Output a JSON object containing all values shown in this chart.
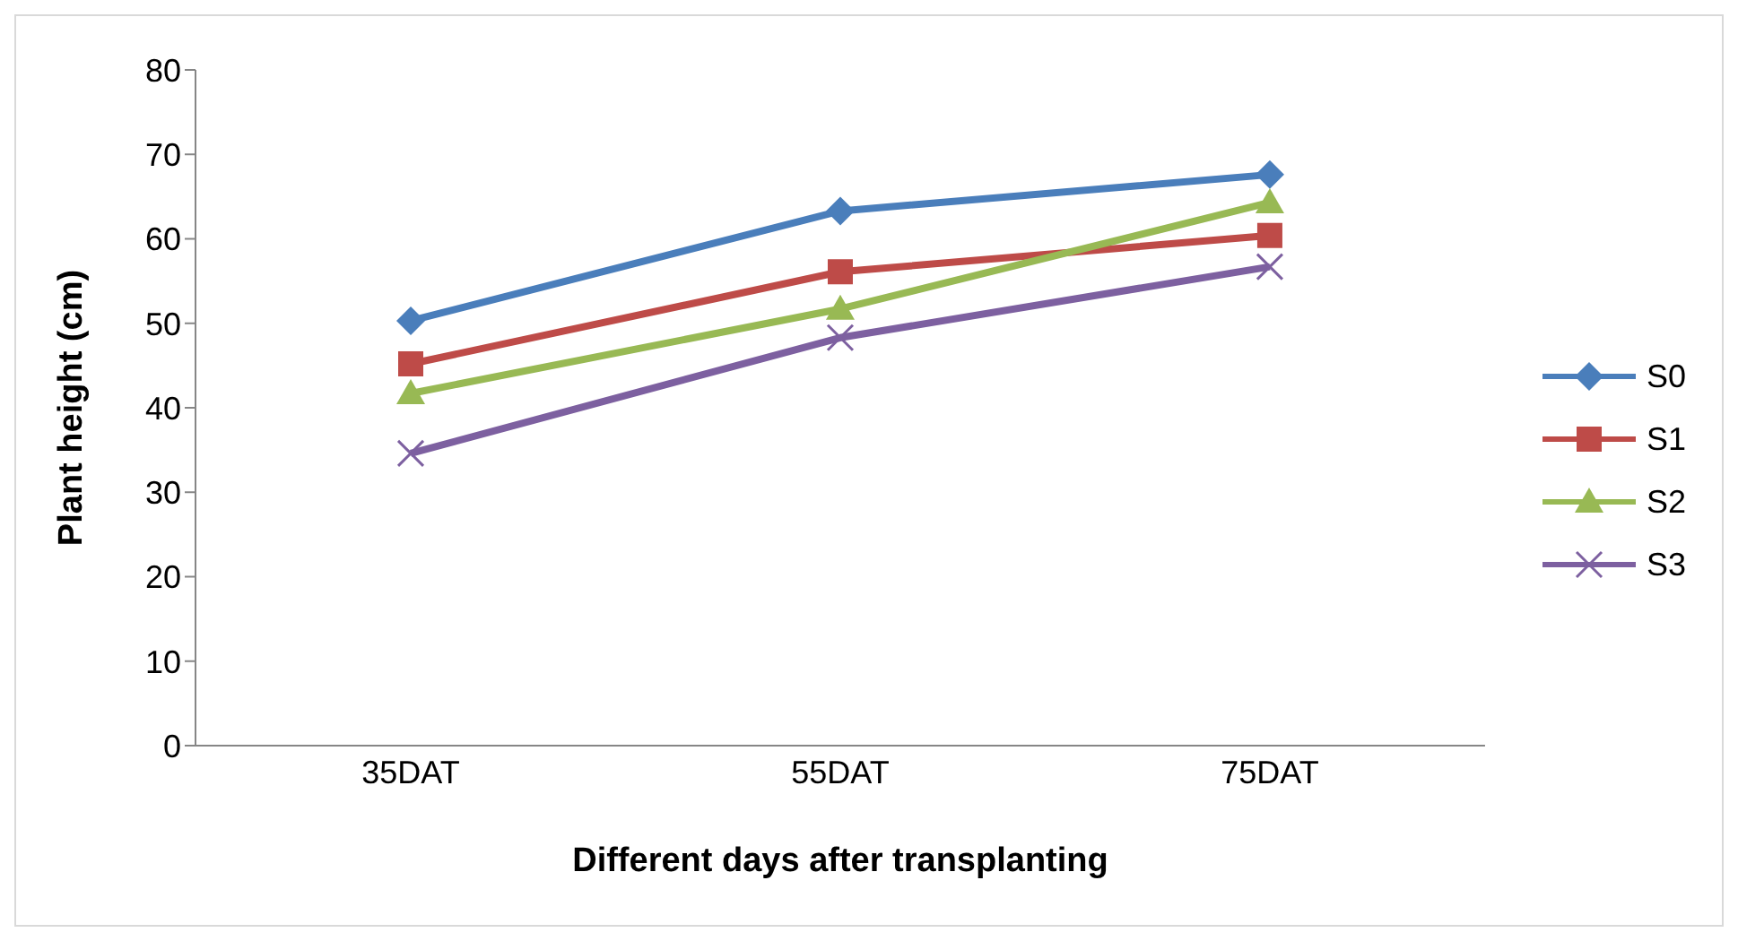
{
  "chart_data": {
    "type": "line",
    "xlabel": "Different days after transplanting",
    "ylabel": "Plant height (cm)",
    "categories": [
      "35DAT",
      "55DAT",
      "75DAT"
    ],
    "series": [
      {
        "name": "S0",
        "color": "#4a7ebb",
        "marker": "diamond",
        "values": [
          50.3,
          63.3,
          67.6
        ]
      },
      {
        "name": "S1",
        "color": "#be4b48",
        "marker": "square",
        "values": [
          45.2,
          56.1,
          60.4
        ]
      },
      {
        "name": "S2",
        "color": "#98b954",
        "marker": "triangle",
        "values": [
          41.7,
          51.7,
          64.3
        ]
      },
      {
        "name": "S3",
        "color": "#7d60a0",
        "marker": "cross",
        "values": [
          34.6,
          48.3,
          56.7
        ]
      }
    ],
    "ylim": [
      0,
      80
    ],
    "yticks": [
      0,
      10,
      20,
      30,
      40,
      50,
      60,
      70,
      80
    ],
    "grid": false,
    "legend": "right",
    "line_style": "solid"
  }
}
